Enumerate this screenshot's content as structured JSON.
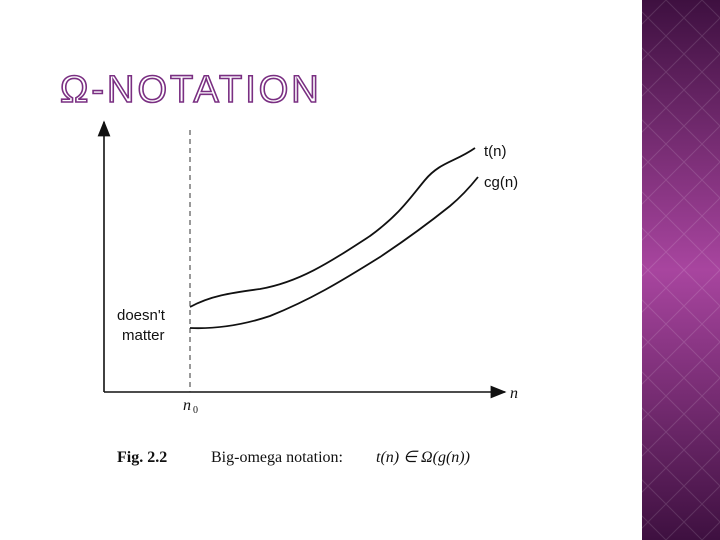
{
  "title": "Ω-NOTATION",
  "diagram": {
    "curves": [
      {
        "label": "t(n)"
      },
      {
        "label": "cg(n)"
      }
    ],
    "region_label": [
      "doesn't",
      "matter"
    ],
    "threshold_label": {
      "main": "n",
      "sub": "0"
    },
    "x_axis_label": "n",
    "caption": {
      "fig": "Fig. 2.2",
      "text": "Big-omega notation:",
      "formula": "t(n) ∈ Ω(g(n))"
    }
  }
}
